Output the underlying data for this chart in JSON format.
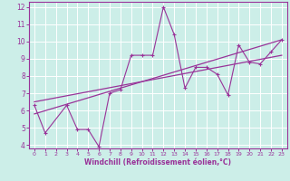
{
  "xlabel": "Windchill (Refroidissement éolien,°C)",
  "bg_color": "#cceee8",
  "line_color": "#993399",
  "grid_color": "#aadddd",
  "xlim": [
    -0.5,
    23.5
  ],
  "ylim": [
    3.8,
    12.3
  ],
  "xticks": [
    0,
    1,
    2,
    3,
    4,
    5,
    6,
    7,
    8,
    9,
    10,
    11,
    12,
    13,
    14,
    15,
    16,
    17,
    18,
    19,
    20,
    21,
    22,
    23
  ],
  "yticks": [
    4,
    5,
    6,
    7,
    8,
    9,
    10,
    11,
    12
  ],
  "series1_x": [
    0,
    1,
    3,
    4,
    5,
    6,
    7,
    8,
    9,
    10,
    11,
    12,
    13,
    14,
    15,
    16,
    17,
    18,
    19,
    20,
    21,
    22,
    23
  ],
  "series1_y": [
    6.3,
    4.7,
    6.3,
    4.9,
    4.9,
    3.9,
    7.0,
    7.2,
    9.2,
    9.2,
    9.2,
    12.0,
    10.4,
    7.3,
    8.5,
    8.5,
    8.1,
    6.9,
    9.8,
    8.8,
    8.7,
    9.4,
    10.1
  ],
  "series2_x": [
    0,
    23
  ],
  "series2_y": [
    5.8,
    10.1
  ],
  "series3_x": [
    0,
    23
  ],
  "series3_y": [
    6.5,
    9.2
  ]
}
